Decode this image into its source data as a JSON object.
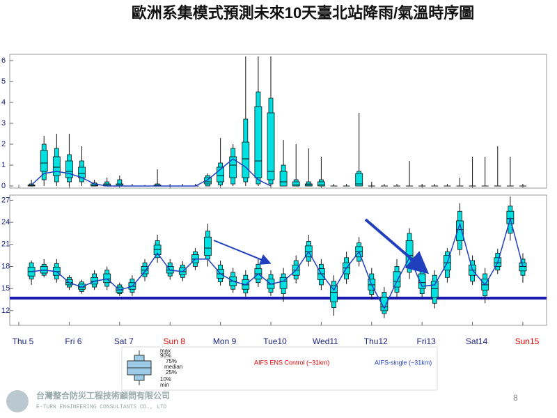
{
  "title": "歐洲系集模式預測未來10天臺北站降雨/氣溫時序圖",
  "chart_data": [
    {
      "type": "box",
      "xlim": [
        -0.18,
        10.47
      ],
      "ylim": [
        -0.1,
        6.3
      ],
      "yticks": [
        0,
        1,
        2,
        3,
        4,
        5,
        6
      ],
      "x": [
        0.25,
        0.5,
        0.75,
        1,
        1.25,
        1.5,
        1.75,
        2,
        2.25,
        2.5,
        2.75,
        3,
        3.25,
        3.5,
        3.75,
        4,
        4.25,
        4.5,
        4.75,
        5,
        5.25,
        5.5,
        5.75,
        6,
        6.25,
        6.5,
        6.75,
        7,
        7.25,
        7.5,
        7.75,
        8,
        8.25,
        8.5,
        8.75,
        9,
        9.25,
        9.5,
        9.75,
        10
      ],
      "box": {
        "color": "#00e0e0",
        "min": [
          0,
          0,
          0,
          0,
          0,
          0,
          0,
          0,
          0,
          0,
          0,
          0,
          0,
          0,
          0,
          0,
          0,
          0,
          0,
          0,
          0,
          0,
          0,
          0,
          0,
          0,
          0,
          0,
          0,
          0,
          0,
          0,
          0,
          0,
          0,
          0,
          0,
          0,
          0,
          0
        ],
        "p10": [
          0,
          0.3,
          0.2,
          0.2,
          0.2,
          0,
          0,
          0,
          0,
          0,
          0,
          0,
          0,
          0,
          0,
          0.05,
          0.1,
          0.2,
          0.1,
          0.1,
          0,
          0,
          0,
          0,
          0,
          0,
          0,
          0,
          0,
          0,
          0,
          0,
          0,
          0,
          0,
          0,
          0,
          0,
          0,
          0
        ],
        "p25": [
          0,
          0.7,
          0.5,
          0.4,
          0.4,
          0,
          0,
          0,
          0,
          0,
          0,
          0,
          0,
          0,
          0.1,
          0.2,
          0.4,
          0.4,
          0.4,
          0.3,
          0,
          0,
          0,
          0,
          0,
          0,
          0,
          0,
          0,
          0,
          0,
          0,
          0,
          0,
          0,
          0,
          0,
          0,
          0,
          0
        ],
        "median": [
          0.02,
          1.1,
          0.9,
          0.7,
          0.6,
          0.03,
          0.05,
          0.05,
          0,
          0,
          0.02,
          0,
          0,
          0,
          0.2,
          0.5,
          1.0,
          1.3,
          1.2,
          0.7,
          0.2,
          0.05,
          0.05,
          0.05,
          0,
          0,
          0.1,
          0,
          0,
          0,
          0,
          0,
          0,
          0,
          0,
          0,
          0,
          0,
          0,
          0
        ],
        "p75": [
          0.05,
          1.7,
          1.4,
          1.2,
          0.9,
          0.1,
          0.1,
          0.1,
          0,
          0,
          0.05,
          0,
          0,
          0,
          0.4,
          0.9,
          1.4,
          2.1,
          3.8,
          3.5,
          0.7,
          0.2,
          0.1,
          0.2,
          0,
          0,
          0.6,
          0,
          0,
          0,
          0,
          0,
          0,
          0,
          0,
          0,
          0,
          0,
          0,
          0
        ],
        "p90": [
          0.1,
          2.0,
          1.8,
          1.5,
          1.2,
          0.15,
          0.2,
          0.3,
          0,
          0,
          0.1,
          0,
          0,
          0,
          0.5,
          1.1,
          1.8,
          3.2,
          4.5,
          4.2,
          1.0,
          0.3,
          0.2,
          0.3,
          0,
          0,
          0.7,
          0,
          0,
          0,
          0,
          0,
          0,
          0,
          0,
          0,
          0,
          0,
          0,
          0
        ],
        "max": [
          0.3,
          2.4,
          2.5,
          2.5,
          1.9,
          0.3,
          0.4,
          0.5,
          0.1,
          0.05,
          0.8,
          0.1,
          0.1,
          0.1,
          0.6,
          2.3,
          2.0,
          6.2,
          6.2,
          6.2,
          2.2,
          2.0,
          1.8,
          1.4,
          0.1,
          0.1,
          3.5,
          0.2,
          0.1,
          0.1,
          1.2,
          0.1,
          0.1,
          0.1,
          0.4,
          1.4,
          1.4,
          1.9,
          1.4,
          0.1
        ]
      },
      "line": {
        "color": "#1f3fbf",
        "values": [
          0.05,
          0.6,
          0.7,
          0.6,
          0.4,
          0.1,
          0,
          0,
          0,
          0,
          0,
          0,
          0,
          0,
          0.3,
          0.8,
          1.3,
          0.9,
          0.3,
          0,
          null,
          null,
          null,
          null,
          null,
          null,
          null,
          null,
          null,
          null,
          null,
          null,
          null,
          null,
          null,
          null,
          null,
          null,
          null,
          null
        ]
      }
    },
    {
      "type": "box",
      "xlim": [
        -0.18,
        10.47
      ],
      "ylim": [
        10,
        27.7
      ],
      "yticks": [
        12,
        15,
        18,
        21,
        24,
        27
      ],
      "xticks": [
        {
          "value": 0,
          "label": "Thu 5",
          "color": "#1a237e"
        },
        {
          "value": 1,
          "label": "Fri 6",
          "color": "#1a237e"
        },
        {
          "value": 2,
          "label": "Sat 7",
          "color": "#1a237e"
        },
        {
          "value": 3,
          "label": "Sun 8",
          "color": "#e00000"
        },
        {
          "value": 4,
          "label": "Mon 9",
          "color": "#1a237e"
        },
        {
          "value": 5,
          "label": "Tue10",
          "color": "#1a237e"
        },
        {
          "value": 6,
          "label": "Wed11",
          "color": "#1a237e"
        },
        {
          "value": 7,
          "label": "Thu12",
          "color": "#1a237e"
        },
        {
          "value": 8,
          "label": "Fri13",
          "color": "#1a237e"
        },
        {
          "value": 9,
          "label": "Sat14",
          "color": "#1a237e"
        },
        {
          "value": 10,
          "label": "Sun15",
          "color": "#e00000"
        }
      ],
      "x": [
        0.25,
        0.5,
        0.75,
        1,
        1.25,
        1.5,
        1.75,
        2,
        2.25,
        2.5,
        2.75,
        3,
        3.25,
        3.5,
        3.75,
        4,
        4.25,
        4.5,
        4.75,
        5,
        5.25,
        5.5,
        5.75,
        6,
        6.25,
        6.5,
        6.75,
        7,
        7.25,
        7.5,
        7.75,
        8,
        8.25,
        8.5,
        8.75,
        9,
        9.25,
        9.5,
        9.75,
        10
      ],
      "box": {
        "color": "#00e0e0",
        "min": [
          15.5,
          16.5,
          15.8,
          14.8,
          14.3,
          14.8,
          14.8,
          14.0,
          14.0,
          16.0,
          18.5,
          16.2,
          16.0,
          17.5,
          18.0,
          15.4,
          14.4,
          13.9,
          15.2,
          14.0,
          13.2,
          15.7,
          18.0,
          14.8,
          11.3,
          15.6,
          18.0,
          13.5,
          11.0,
          13.8,
          16.3,
          13.8,
          12.3,
          15.8,
          19.5,
          15.5,
          13.0,
          17.0,
          21.5,
          15.8
        ],
        "p10": [
          16.3,
          16.8,
          16.3,
          15.2,
          14.6,
          15.2,
          15.3,
          14.3,
          14.5,
          16.6,
          19.2,
          16.7,
          16.5,
          18.0,
          19.0,
          15.9,
          14.9,
          14.4,
          15.8,
          14.5,
          14.3,
          16.3,
          18.7,
          15.5,
          12.4,
          16.3,
          18.7,
          14.2,
          11.6,
          14.5,
          17.2,
          14.3,
          13.0,
          16.5,
          20.3,
          16.0,
          14.0,
          17.5,
          22.5,
          16.8
        ],
        "p25": [
          16.7,
          17.1,
          16.8,
          15.5,
          14.9,
          15.6,
          15.8,
          14.5,
          14.9,
          17.0,
          19.6,
          17.1,
          16.9,
          18.5,
          19.5,
          16.4,
          15.4,
          14.9,
          16.3,
          15.0,
          15.0,
          16.8,
          19.3,
          16.2,
          13.2,
          17.0,
          19.3,
          14.8,
          12.0,
          15.2,
          18.0,
          15.0,
          13.8,
          17.5,
          21.5,
          16.8,
          14.8,
          18.0,
          23.8,
          17.4
        ],
        "median": [
          17.3,
          17.5,
          17.3,
          15.8,
          15.2,
          16.0,
          16.3,
          14.8,
          15.3,
          17.5,
          20.3,
          17.5,
          17.3,
          19.0,
          20.5,
          17.0,
          16.0,
          15.5,
          17.0,
          15.6,
          16.0,
          17.5,
          20.0,
          17.0,
          14.5,
          17.8,
          20.0,
          15.5,
          12.5,
          16.0,
          19.5,
          15.8,
          15.0,
          18.5,
          23.0,
          17.5,
          15.5,
          18.5,
          24.5,
          18.0
        ],
        "p75": [
          17.9,
          18.0,
          17.9,
          16.2,
          15.6,
          16.5,
          17.0,
          15.2,
          15.8,
          18.0,
          20.9,
          18.0,
          17.8,
          19.6,
          22.0,
          17.6,
          16.6,
          16.2,
          17.7,
          16.3,
          16.5,
          18.2,
          20.8,
          17.7,
          15.4,
          18.5,
          20.7,
          16.3,
          13.8,
          17.3,
          21.5,
          17.0,
          16.0,
          19.5,
          24.2,
          18.2,
          16.3,
          19.2,
          25.5,
          18.5
        ],
        "p90": [
          18.5,
          18.3,
          18.4,
          16.5,
          15.9,
          17.0,
          17.5,
          15.5,
          16.3,
          18.5,
          21.5,
          18.5,
          18.2,
          20.0,
          22.8,
          18.2,
          17.2,
          16.8,
          18.3,
          16.9,
          17.0,
          18.8,
          21.4,
          18.3,
          16.0,
          19.2,
          21.2,
          17.0,
          14.5,
          18.0,
          22.5,
          17.8,
          16.8,
          20.0,
          25.5,
          18.8,
          17.0,
          19.8,
          26.2,
          19.0
        ],
        "max": [
          18.8,
          19.0,
          19.0,
          16.8,
          16.2,
          17.5,
          18.0,
          15.8,
          16.8,
          19.0,
          22.3,
          19.0,
          18.7,
          20.5,
          23.8,
          18.8,
          17.8,
          17.5,
          19.0,
          17.5,
          17.8,
          19.5,
          22.3,
          19.0,
          16.8,
          20.0,
          22.0,
          17.8,
          15.2,
          19.0,
          23.2,
          18.5,
          17.5,
          20.5,
          26.6,
          19.5,
          17.8,
          20.4,
          27.5,
          19.8
        ]
      },
      "line": {
        "color": "#1f3fbf",
        "values": [
          17.3,
          17.5,
          17.3,
          15.8,
          15.2,
          16.0,
          16.3,
          14.8,
          15.3,
          17.3,
          19.8,
          17.5,
          17.3,
          19.0,
          19.0,
          17.0,
          16.0,
          15.5,
          17.0,
          15.6,
          16.0,
          17.5,
          20.0,
          17.0,
          14.8,
          17.8,
          20.0,
          15.5,
          12.3,
          16.0,
          19.2,
          15.3,
          15.5,
          18.5,
          23.8,
          17.5,
          15.5,
          18.5,
          24.5,
          18.0
        ]
      },
      "hline": {
        "value": 13.7,
        "color": "#1a1ab0"
      }
    }
  ],
  "legend": {
    "box_labels": [
      "max",
      "90%",
      "75%",
      "median",
      "25%",
      "10%",
      "min"
    ],
    "series": [
      {
        "name": "AIFS ENS Control (~31km)",
        "color": "#e00000"
      },
      {
        "name": "AIFS-single (~31km)",
        "color": "#1f3fbf"
      }
    ]
  },
  "footer": {
    "company": "台灣整合防災工程技術顧問有限公司",
    "company_en": "E-TURN ENGINEERING CONSULTANTS CO., LTD",
    "page": "8"
  }
}
